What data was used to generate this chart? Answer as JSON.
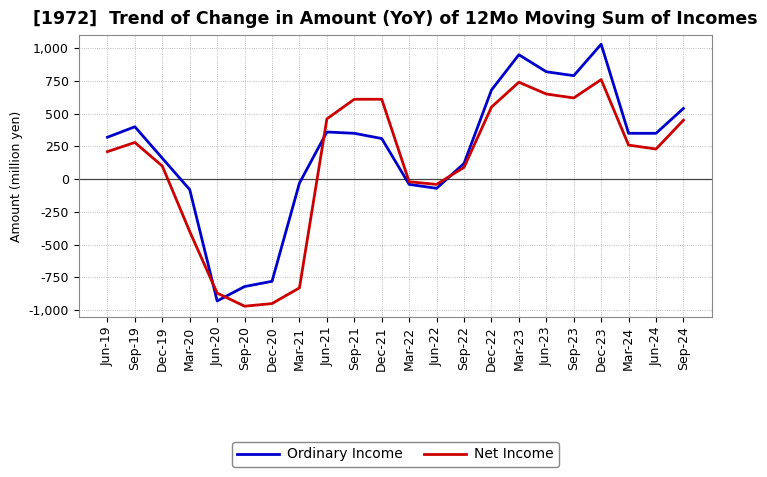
{
  "title": "[1972]  Trend of Change in Amount (YoY) of 12Mo Moving Sum of Incomes",
  "ylabel": "Amount (million yen)",
  "background_color": "#ffffff",
  "plot_bg_color": "#ffffff",
  "grid_color": "#aaaaaa",
  "x_labels": [
    "Jun-19",
    "Sep-19",
    "Dec-19",
    "Mar-20",
    "Jun-20",
    "Sep-20",
    "Dec-20",
    "Mar-21",
    "Jun-21",
    "Sep-21",
    "Dec-21",
    "Mar-22",
    "Jun-22",
    "Sep-22",
    "Dec-22",
    "Mar-23",
    "Jun-23",
    "Sep-23",
    "Dec-23",
    "Mar-24",
    "Jun-24",
    "Sep-24"
  ],
  "ordinary_income": [
    320,
    400,
    160,
    -80,
    -930,
    -820,
    -780,
    -30,
    360,
    350,
    310,
    -40,
    -70,
    120,
    680,
    950,
    820,
    790,
    1030,
    350,
    350,
    540
  ],
  "net_income": [
    210,
    280,
    100,
    -400,
    -870,
    -970,
    -950,
    -830,
    460,
    610,
    610,
    -20,
    -40,
    90,
    550,
    740,
    650,
    620,
    760,
    260,
    230,
    450
  ],
  "ordinary_color": "#0000cc",
  "net_color": "#cc0000",
  "ylim": [
    -1050,
    1100
  ],
  "yticks": [
    -1000,
    -750,
    -500,
    -250,
    0,
    250,
    500,
    750,
    1000
  ],
  "line_width": 2.0,
  "title_fontsize": 12.5,
  "axis_fontsize": 9,
  "ylabel_fontsize": 9,
  "legend_fontsize": 10
}
